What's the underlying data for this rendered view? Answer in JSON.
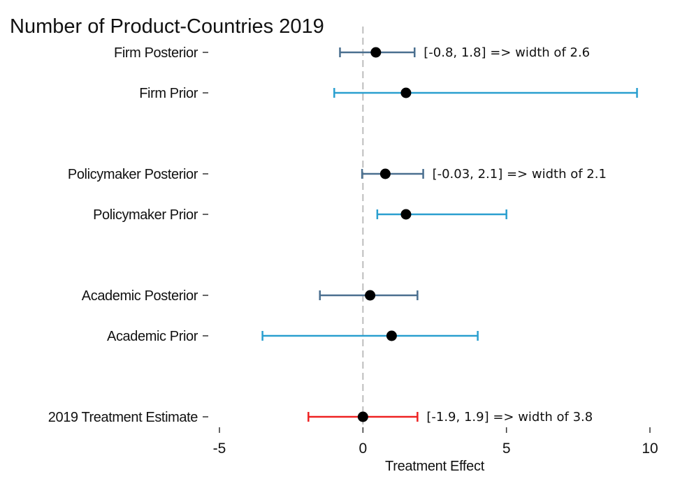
{
  "chart_data": {
    "type": "errorbar",
    "title": "Number of Product-Countries 2019",
    "xlabel": "Treatment Effect",
    "ylabel": "",
    "xlim": [
      -5,
      10
    ],
    "xticks": [
      -5,
      0,
      5,
      10
    ],
    "xtick_labels": [
      "-5",
      "0",
      "5",
      "10"
    ],
    "reference_line": {
      "x": 0,
      "style": "dashed",
      "color": "#bdbdbd"
    },
    "grid": false,
    "rows": [
      {
        "label": "Firm Posterior",
        "estimate": 0.45,
        "lower": -0.8,
        "upper": 1.8,
        "color": "#4a6f8f",
        "annotation": "[-0.8, 1.8] => width of 2.6"
      },
      {
        "label": "Firm Prior",
        "estimate": 1.5,
        "lower": -1.0,
        "upper": 9.55,
        "color": "#2a9fcf",
        "annotation": ""
      },
      {
        "label": "Policymaker Posterior",
        "estimate": 0.78,
        "lower": -0.03,
        "upper": 2.1,
        "color": "#4a6f8f",
        "annotation": "[-0.03, 2.1] => width of 2.1"
      },
      {
        "label": "Policymaker Prior",
        "estimate": 1.5,
        "lower": 0.5,
        "upper": 5.0,
        "color": "#2a9fcf",
        "annotation": ""
      },
      {
        "label": "Academic Posterior",
        "estimate": 0.25,
        "lower": -1.5,
        "upper": 1.9,
        "color": "#4a6f8f",
        "annotation": ""
      },
      {
        "label": "Academic Prior",
        "estimate": 1.0,
        "lower": -3.5,
        "upper": 4.0,
        "color": "#2a9fcf",
        "annotation": ""
      },
      {
        "label": "2019 Treatment Estimate",
        "estimate": 0.0,
        "lower": -1.9,
        "upper": 1.9,
        "color": "#ee2222",
        "annotation": "[-1.9, 1.9] => width of 3.8"
      }
    ]
  }
}
